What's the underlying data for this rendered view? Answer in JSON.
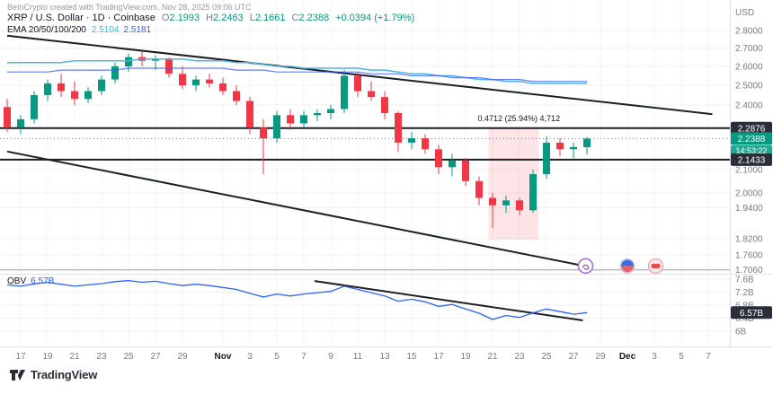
{
  "header": {
    "attribution": "BeInCrypto created with TradingView.com, Nov 28, 2025 09:06 UTC",
    "symbol": {
      "title": "XRP / U.S. Dollar · 1D · Coinbase",
      "ohlc": [
        {
          "label": "O",
          "value": "2.1993"
        },
        {
          "label": "H",
          "value": "2.2463"
        },
        {
          "label": "L",
          "value": "2.1661"
        },
        {
          "label": "C",
          "value": "2.2388"
        }
      ],
      "change": "+0.0394 (+1.79%)"
    },
    "ema": {
      "label": "EMA 20/50/100/200",
      "values": [
        "2.5104",
        "2.5181"
      ]
    },
    "obv": {
      "label": "OBV",
      "value": "6.57B"
    }
  },
  "axis": {
    "currency": "USD"
  },
  "footer": {
    "logo_text": "TradingView"
  },
  "chart_data": {
    "type": "candlestick",
    "symbol": "XRP/USD",
    "timeframe": "1D",
    "exchange": "Coinbase",
    "price_scale": "log",
    "main_ylim": [
      1.6988,
      2.8315
    ],
    "obv_ylim": [
      5.64,
      7.68
    ],
    "last_price": 2.2388,
    "colors": {
      "up": "#089981",
      "down": "#f23645",
      "obv": "#2962ff",
      "ema_fast": "#4db6e2",
      "ema_slow": "#3d5afe",
      "grid": "rgba(19,23,34,0.06)",
      "axis_text": "#787b86"
    },
    "dates": [
      "Oct 16",
      "Oct 17",
      "Oct 18",
      "Oct 19",
      "Oct 20",
      "Oct 21",
      "Oct 22",
      "Oct 23",
      "Oct 24",
      "Oct 25",
      "Oct 26",
      "Oct 27",
      "Oct 28",
      "Oct 29",
      "Oct 30",
      "Oct 31",
      "Nov 1",
      "Nov 2",
      "Nov 3",
      "Nov 4",
      "Nov 5",
      "Nov 6",
      "Nov 7",
      "Nov 8",
      "Nov 9",
      "Nov 10",
      "Nov 11",
      "Nov 12",
      "Nov 13",
      "Nov 14",
      "Nov 15",
      "Nov 16",
      "Nov 17",
      "Nov 18",
      "Nov 19",
      "Nov 20",
      "Nov 21",
      "Nov 22",
      "Nov 23",
      "Nov 24",
      "Nov 25",
      "Nov 26",
      "Nov 27",
      "Nov 28"
    ],
    "candles": [
      [
        2.39,
        2.43,
        2.27,
        2.29
      ],
      [
        2.29,
        2.35,
        2.26,
        2.33
      ],
      [
        2.33,
        2.47,
        2.31,
        2.45
      ],
      [
        2.45,
        2.53,
        2.42,
        2.51
      ],
      [
        2.51,
        2.56,
        2.44,
        2.47
      ],
      [
        2.47,
        2.52,
        2.4,
        2.43
      ],
      [
        2.43,
        2.49,
        2.41,
        2.47
      ],
      [
        2.47,
        2.55,
        2.45,
        2.53
      ],
      [
        2.53,
        2.62,
        2.51,
        2.6
      ],
      [
        2.6,
        2.67,
        2.57,
        2.65
      ],
      [
        2.65,
        2.68,
        2.6,
        2.63
      ],
      [
        2.63,
        2.66,
        2.58,
        2.64
      ],
      [
        2.64,
        2.65,
        2.54,
        2.56
      ],
      [
        2.56,
        2.6,
        2.48,
        2.5
      ],
      [
        2.5,
        2.55,
        2.47,
        2.53
      ],
      [
        2.53,
        2.56,
        2.49,
        2.51
      ],
      [
        2.51,
        2.54,
        2.45,
        2.47
      ],
      [
        2.47,
        2.5,
        2.4,
        2.42
      ],
      [
        2.42,
        2.44,
        2.26,
        2.29
      ],
      [
        2.29,
        2.33,
        2.08,
        2.24
      ],
      [
        2.24,
        2.37,
        2.22,
        2.35
      ],
      [
        2.35,
        2.38,
        2.28,
        2.31
      ],
      [
        2.31,
        2.37,
        2.29,
        2.35
      ],
      [
        2.35,
        2.38,
        2.32,
        2.36
      ],
      [
        2.36,
        2.4,
        2.33,
        2.38
      ],
      [
        2.38,
        2.58,
        2.36,
        2.55
      ],
      [
        2.55,
        2.57,
        2.44,
        2.47
      ],
      [
        2.47,
        2.52,
        2.42,
        2.44
      ],
      [
        2.44,
        2.47,
        2.33,
        2.36
      ],
      [
        2.36,
        2.37,
        2.18,
        2.22
      ],
      [
        2.22,
        2.27,
        2.19,
        2.24
      ],
      [
        2.24,
        2.26,
        2.17,
        2.19
      ],
      [
        2.19,
        2.21,
        2.08,
        2.11
      ],
      [
        2.11,
        2.17,
        2.07,
        2.14
      ],
      [
        2.14,
        2.15,
        2.03,
        2.05
      ],
      [
        2.05,
        2.07,
        1.95,
        1.98
      ],
      [
        1.98,
        2.0,
        1.86,
        1.95
      ],
      [
        1.95,
        1.99,
        1.92,
        1.97
      ],
      [
        1.97,
        1.98,
        1.91,
        1.93
      ],
      [
        1.93,
        2.1,
        1.92,
        2.08
      ],
      [
        2.08,
        2.25,
        2.06,
        2.22
      ],
      [
        2.22,
        2.24,
        2.16,
        2.19
      ],
      [
        2.19,
        2.22,
        2.15,
        2.2
      ],
      [
        2.1993,
        2.2463,
        2.1661,
        2.2388
      ]
    ],
    "ema_a": [
      2.62,
      2.62,
      2.62,
      2.62,
      2.62,
      2.63,
      2.63,
      2.63,
      2.63,
      2.63,
      2.64,
      2.64,
      2.64,
      2.64,
      2.63,
      2.63,
      2.63,
      2.62,
      2.62,
      2.61,
      2.6,
      2.6,
      2.59,
      2.59,
      2.59,
      2.59,
      2.59,
      2.58,
      2.58,
      2.57,
      2.56,
      2.56,
      2.55,
      2.55,
      2.54,
      2.53,
      2.53,
      2.52,
      2.52,
      2.51,
      2.51,
      2.51,
      2.51,
      2.51
    ],
    "ema_b": [
      2.57,
      2.57,
      2.57,
      2.57,
      2.58,
      2.58,
      2.58,
      2.58,
      2.58,
      2.59,
      2.59,
      2.59,
      2.59,
      2.59,
      2.59,
      2.59,
      2.59,
      2.58,
      2.58,
      2.58,
      2.57,
      2.57,
      2.57,
      2.57,
      2.57,
      2.57,
      2.57,
      2.56,
      2.56,
      2.56,
      2.55,
      2.55,
      2.55,
      2.54,
      2.54,
      2.54,
      2.53,
      2.53,
      2.53,
      2.52,
      2.52,
      2.52,
      2.52,
      2.52
    ],
    "obv": [
      7.42,
      7.38,
      7.45,
      7.5,
      7.44,
      7.38,
      7.42,
      7.46,
      7.52,
      7.55,
      7.5,
      7.53,
      7.46,
      7.4,
      7.44,
      7.4,
      7.34,
      7.28,
      7.16,
      7.05,
      7.14,
      7.08,
      7.14,
      7.18,
      7.22,
      7.38,
      7.28,
      7.18,
      7.08,
      6.92,
      6.98,
      6.9,
      6.76,
      6.82,
      6.68,
      6.55,
      6.36,
      6.48,
      6.42,
      6.56,
      6.68,
      6.6,
      6.52,
      6.57
    ],
    "price_ticks": [
      {
        "p": 2.8,
        "label": "2.8000"
      },
      {
        "p": 2.7,
        "label": "2.7000"
      },
      {
        "p": 2.6,
        "label": "2.6000"
      },
      {
        "p": 2.5,
        "label": "2.5000"
      },
      {
        "p": 2.4,
        "label": "2.4000"
      },
      {
        "p": 2.1,
        "label": "2.1000"
      },
      {
        "p": 2.0,
        "label": "2.0000"
      },
      {
        "p": 1.94,
        "label": "1.9400"
      },
      {
        "p": 1.82,
        "label": "1.8200"
      },
      {
        "p": 1.76,
        "label": "1.7600"
      },
      {
        "p": 1.706,
        "label": "1.7060"
      }
    ],
    "obv_ticks": [
      {
        "v": 7.6,
        "label": "7.6B"
      },
      {
        "v": 7.2,
        "label": "7.2B"
      },
      {
        "v": 6.8,
        "label": "6.8B"
      },
      {
        "v": 6.4,
        "label": "6.4B"
      },
      {
        "v": 6.0,
        "label": "6B"
      }
    ],
    "x_ticks": [
      {
        "i": 1,
        "label": "17",
        "month": false
      },
      {
        "i": 3,
        "label": "19",
        "month": false
      },
      {
        "i": 5,
        "label": "21",
        "month": false
      },
      {
        "i": 7,
        "label": "23",
        "month": false
      },
      {
        "i": 9,
        "label": "25",
        "month": false
      },
      {
        "i": 11,
        "label": "27",
        "month": false
      },
      {
        "i": 13,
        "label": "29",
        "month": false
      },
      {
        "i": 16,
        "label": "Nov",
        "month": true
      },
      {
        "i": 18,
        "label": "3",
        "month": false
      },
      {
        "i": 20,
        "label": "5",
        "month": false
      },
      {
        "i": 22,
        "label": "7",
        "month": false
      },
      {
        "i": 24,
        "label": "9",
        "month": false
      },
      {
        "i": 26,
        "label": "11",
        "month": false
      },
      {
        "i": 28,
        "label": "13",
        "month": false
      },
      {
        "i": 30,
        "label": "15",
        "month": false
      },
      {
        "i": 32,
        "label": "17",
        "month": false
      },
      {
        "i": 34,
        "label": "19",
        "month": false
      },
      {
        "i": 36,
        "label": "21",
        "month": false
      },
      {
        "i": 38,
        "label": "23",
        "month": false
      },
      {
        "i": 40,
        "label": "25",
        "month": false
      },
      {
        "i": 42,
        "label": "27",
        "month": false
      },
      {
        "i": 44,
        "label": "29",
        "month": false
      },
      {
        "i": 46,
        "label": "Dec",
        "month": true
      },
      {
        "i": 48,
        "label": "3",
        "month": false
      },
      {
        "i": 50,
        "label": "5",
        "month": false
      },
      {
        "i": 52,
        "label": "7",
        "month": false
      }
    ],
    "levels": [
      {
        "price": 2.2876,
        "color": "#1c1f27",
        "width": 2
      },
      {
        "price": 2.1433,
        "color": "#1c1f27",
        "width": 2
      },
      {
        "price": 1.706,
        "color": "#9aa0ab",
        "width": 1
      }
    ],
    "trendlines": [
      {
        "pane": "main",
        "i1": 0,
        "v1": 2.77,
        "i2": 52.3,
        "v2": 2.355,
        "color": "#1c1f27",
        "width": 2
      },
      {
        "pane": "main",
        "i1": 0,
        "v1": 2.18,
        "i2": 42.8,
        "v2": 1.72,
        "color": "#1c1f27",
        "width": 2
      },
      {
        "pane": "obv",
        "i1": 22.8,
        "v1": 7.54,
        "i2": 42.7,
        "v2": 6.33,
        "color": "#1c1f27",
        "width": 2
      }
    ],
    "range_box": {
      "i1": 35.7,
      "i2": 39.4,
      "top": 2.2878,
      "bottom": 1.8166,
      "label": "0.4712 (25.94%) 4,712",
      "fill": "rgba(242,54,69,0.13)"
    },
    "badges": [
      {
        "id": "resistance",
        "label": "2.2876",
        "value": 2.2876,
        "bg": "#2a2e39",
        "pane": "main"
      },
      {
        "id": "last-price",
        "label": "2.2388",
        "value": 2.2388,
        "bg": "#089981",
        "pane": "main",
        "countdown": "14:53:22"
      },
      {
        "id": "support",
        "label": "2.1433",
        "value": 2.1433,
        "bg": "#2a2e39",
        "pane": "main"
      },
      {
        "id": "obv-value",
        "label": "6.57B",
        "value": 6.57,
        "bg": "#2a2e39",
        "pane": "obv"
      }
    ],
    "stickers": [
      {
        "i": 42.9,
        "p": 1.72,
        "kind": "purple-swirl"
      },
      {
        "i": 46.0,
        "p": 1.72,
        "kind": "blue-red-badge"
      },
      {
        "i": 48.1,
        "p": 1.72,
        "kind": "red-badge"
      }
    ]
  }
}
